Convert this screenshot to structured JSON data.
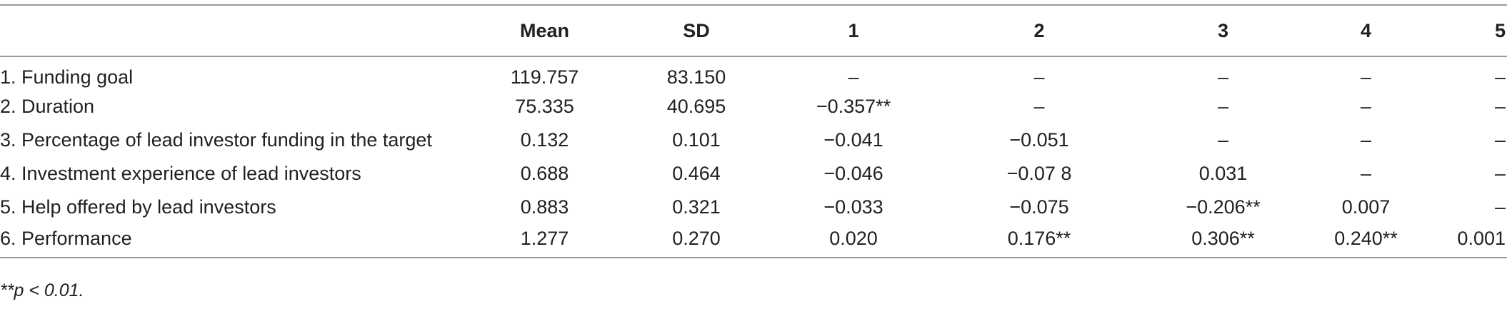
{
  "table": {
    "headers": [
      "",
      "Mean",
      "SD",
      "1",
      "2",
      "3",
      "4",
      "5"
    ],
    "rows": [
      [
        "1. Funding goal",
        "119.757",
        "83.150",
        "–",
        "–",
        "–",
        "–",
        "–"
      ],
      [
        "2. Duration",
        "75.335",
        "40.695",
        "−0.357**",
        "–",
        "–",
        "–",
        "–"
      ],
      [
        "3. Percentage of lead investor funding in the target",
        "0.132",
        "0.101",
        "−0.041",
        "−0.051",
        "–",
        "–",
        "–"
      ],
      [
        "4. Investment experience of lead investors",
        "0.688",
        "0.464",
        "−0.046",
        "−0.07 8",
        "0.031",
        "–",
        "–"
      ],
      [
        "5. Help offered by lead investors",
        "0.883",
        "0.321",
        "−0.033",
        "−0.075",
        "−0.206**",
        "0.007",
        "–"
      ],
      [
        "6. Performance",
        "1.277",
        "0.270",
        "0.020",
        "0.176**",
        "0.306**",
        "0.240**",
        "0.001"
      ]
    ]
  },
  "footnote": "**p < 0.01."
}
